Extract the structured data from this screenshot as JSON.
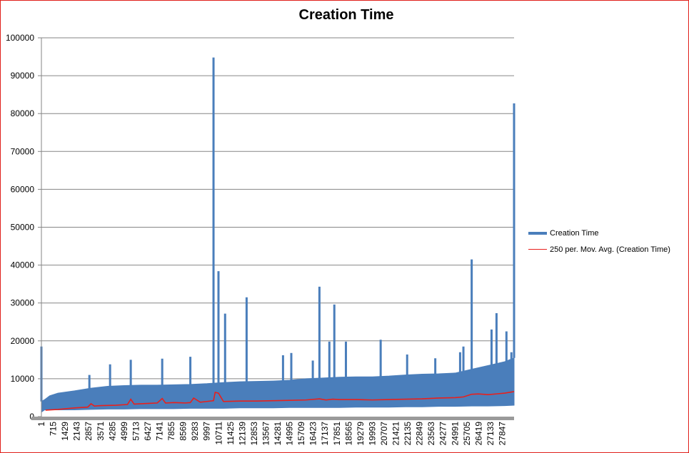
{
  "chart_data": {
    "type": "line",
    "title": "Creation Time",
    "xlabel": "",
    "ylabel": "",
    "ylim": [
      0,
      100000
    ],
    "yticks": [
      0,
      10000,
      20000,
      30000,
      40000,
      50000,
      60000,
      70000,
      80000,
      90000,
      100000
    ],
    "xlim": [
      1,
      28561
    ],
    "xticks": [
      1,
      715,
      1429,
      2143,
      2857,
      3571,
      4285,
      4999,
      5713,
      6427,
      7141,
      7855,
      8569,
      9283,
      9997,
      10711,
      11425,
      12139,
      12853,
      13567,
      14281,
      14995,
      15709,
      16423,
      17137,
      17851,
      18565,
      19279,
      19993,
      20707,
      21421,
      22135,
      22849,
      23563,
      24277,
      24991,
      25705,
      26419,
      27133,
      27847
    ],
    "gridlines": "horizontal",
    "legend_position": "right",
    "series": [
      {
        "name": "Creation Time",
        "color": "#4a7ebb",
        "band": {
          "x": [
            1,
            200,
            500,
            1000,
            2000,
            3000,
            4000,
            5000,
            6000,
            7000,
            8000,
            9000,
            10000,
            11000,
            12000,
            13000,
            14000,
            15000,
            16000,
            17000,
            18000,
            19000,
            20000,
            21000,
            22000,
            23000,
            24000,
            25000,
            26000,
            27000,
            28000,
            28561
          ],
          "lower": [
            1200,
            1800,
            1800,
            1800,
            1800,
            1900,
            2000,
            2000,
            2100,
            2100,
            2100,
            2200,
            2200,
            2200,
            2300,
            2300,
            2300,
            2400,
            2400,
            2400,
            2400,
            2500,
            2500,
            2500,
            2600,
            2600,
            2700,
            2700,
            2800,
            2800,
            2900,
            3000
          ],
          "upper": [
            4000,
            4500,
            5500,
            6200,
            6800,
            7500,
            8000,
            8200,
            8300,
            8300,
            8400,
            8500,
            8700,
            9000,
            9200,
            9300,
            9400,
            9600,
            10000,
            10200,
            10400,
            10500,
            10500,
            10700,
            11000,
            11200,
            11300,
            11500,
            12500,
            13500,
            14500,
            15500
          ]
        },
        "spikes": [
          {
            "x": 1,
            "y": 18500
          },
          {
            "x": 2900,
            "y": 11000
          },
          {
            "x": 4150,
            "y": 13800
          },
          {
            "x": 5400,
            "y": 15000
          },
          {
            "x": 7300,
            "y": 15300
          },
          {
            "x": 9000,
            "y": 15800
          },
          {
            "x": 10400,
            "y": 94800
          },
          {
            "x": 10700,
            "y": 38400
          },
          {
            "x": 11100,
            "y": 27200
          },
          {
            "x": 12400,
            "y": 31500
          },
          {
            "x": 14600,
            "y": 16200
          },
          {
            "x": 15100,
            "y": 16800
          },
          {
            "x": 16400,
            "y": 14800
          },
          {
            "x": 16800,
            "y": 34300
          },
          {
            "x": 17400,
            "y": 19800
          },
          {
            "x": 17700,
            "y": 29600
          },
          {
            "x": 18400,
            "y": 19800
          },
          {
            "x": 20500,
            "y": 20300
          },
          {
            "x": 22100,
            "y": 16400
          },
          {
            "x": 23800,
            "y": 15400
          },
          {
            "x": 25300,
            "y": 17000
          },
          {
            "x": 25500,
            "y": 18500
          },
          {
            "x": 26000,
            "y": 41500
          },
          {
            "x": 27200,
            "y": 23000
          },
          {
            "x": 27500,
            "y": 27300
          },
          {
            "x": 28100,
            "y": 22500
          },
          {
            "x": 28400,
            "y": 17000
          },
          {
            "x": 28561,
            "y": 82700
          }
        ]
      },
      {
        "name": "250 per. Mov. Avg. (Creation Time)",
        "color": "#e8201c",
        "x": [
          250,
          1000,
          2000,
          2800,
          3000,
          3200,
          3600,
          4500,
          5200,
          5400,
          5600,
          6500,
          7000,
          7300,
          7500,
          8000,
          8700,
          9000,
          9200,
          9600,
          10000,
          10400,
          10500,
          10700,
          11000,
          12000,
          13000,
          14000,
          15000,
          16000,
          16800,
          17200,
          17600,
          18000,
          19000,
          20000,
          21000,
          22000,
          23000,
          24000,
          25000,
          25500,
          26000,
          26400,
          27000,
          27500,
          28000,
          28561
        ],
        "y": [
          1700,
          1900,
          2300,
          2500,
          3400,
          2800,
          2900,
          3000,
          3200,
          4600,
          3300,
          3500,
          3600,
          4800,
          3600,
          3700,
          3600,
          3700,
          4900,
          3800,
          4000,
          4200,
          6400,
          6200,
          4000,
          4100,
          4100,
          4200,
          4300,
          4400,
          4700,
          4400,
          4600,
          4500,
          4500,
          4400,
          4500,
          4600,
          4700,
          4900,
          5000,
          5200,
          5900,
          6000,
          5800,
          6000,
          6200,
          6600
        ]
      }
    ]
  }
}
